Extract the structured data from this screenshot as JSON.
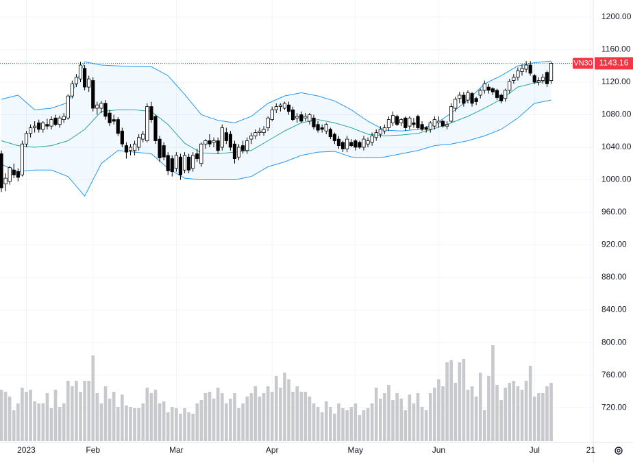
{
  "chart_data": {
    "type": "candlestick",
    "symbol": "VN30",
    "xlim": [
      -0.33,
      141.94
    ],
    "ylim": [
      678,
      1221
    ],
    "xticks": [
      {
        "value": 6,
        "label": "2023"
      },
      {
        "value": 22,
        "label": "Feb"
      },
      {
        "value": 42,
        "label": "Mar"
      },
      {
        "value": 65,
        "label": "Apr"
      },
      {
        "value": 85,
        "label": "May"
      },
      {
        "value": 105,
        "label": "Jun"
      },
      {
        "value": 128,
        "label": "Jul"
      },
      {
        "value": 141.5,
        "label": "21"
      }
    ],
    "yticks": [
      {
        "value": 720,
        "label": "720.00"
      },
      {
        "value": 760,
        "label": "760.00"
      },
      {
        "value": 800,
        "label": "800.00"
      },
      {
        "value": 840,
        "label": "840.00"
      },
      {
        "value": 880,
        "label": "880.00"
      },
      {
        "value": 920,
        "label": "920.00"
      },
      {
        "value": 960,
        "label": "960.00"
      },
      {
        "value": 1000,
        "label": "1000.00"
      },
      {
        "value": 1040,
        "label": "1040.00"
      },
      {
        "value": 1080,
        "label": "1080.00"
      },
      {
        "value": 1120,
        "label": "1120.00"
      },
      {
        "value": 1160,
        "label": "1160.00"
      },
      {
        "value": 1200,
        "label": "1200.00"
      }
    ],
    "grid": true,
    "up_color": "#ffffff",
    "down_color": "#000000",
    "last_color": "#f23645",
    "ohlc": [
      [
        1032,
        1036,
        985,
        990
      ],
      [
        995,
        1008,
        986,
        1002
      ],
      [
        998,
        1017,
        994,
        1015
      ],
      [
        1012,
        1020,
        1002,
        1006
      ],
      [
        1010,
        1014,
        998,
        1003
      ],
      [
        1006,
        1048,
        1004,
        1044
      ],
      [
        1044,
        1060,
        1040,
        1057
      ],
      [
        1057,
        1068,
        1052,
        1064
      ],
      [
        1064,
        1072,
        1058,
        1066
      ],
      [
        1070,
        1074,
        1058,
        1062
      ],
      [
        1062,
        1072,
        1058,
        1070
      ],
      [
        1068,
        1075,
        1062,
        1066
      ],
      [
        1066,
        1078,
        1062,
        1074
      ],
      [
        1076,
        1080,
        1066,
        1068
      ],
      [
        1068,
        1079,
        1064,
        1076
      ],
      [
        1074,
        1082,
        1070,
        1078
      ],
      [
        1076,
        1105,
        1074,
        1103
      ],
      [
        1103,
        1122,
        1100,
        1118
      ],
      [
        1118,
        1130,
        1114,
        1126
      ],
      [
        1124,
        1145,
        1120,
        1141
      ],
      [
        1137,
        1141,
        1110,
        1114
      ],
      [
        1114,
        1128,
        1108,
        1124
      ],
      [
        1122,
        1126,
        1084,
        1088
      ],
      [
        1088,
        1096,
        1080,
        1092
      ],
      [
        1088,
        1097,
        1082,
        1094
      ],
      [
        1094,
        1098,
        1074,
        1078
      ],
      [
        1082,
        1086,
        1066,
        1070
      ],
      [
        1074,
        1080,
        1068,
        1072
      ],
      [
        1074,
        1077,
        1054,
        1057
      ],
      [
        1060,
        1064,
        1040,
        1044
      ],
      [
        1042,
        1046,
        1026,
        1034
      ],
      [
        1036,
        1044,
        1030,
        1040
      ],
      [
        1036,
        1048,
        1030,
        1044
      ],
      [
        1040,
        1056,
        1036,
        1052
      ],
      [
        1050,
        1060,
        1046,
        1056
      ],
      [
        1048,
        1094,
        1046,
        1090
      ],
      [
        1090,
        1096,
        1070,
        1074
      ],
      [
        1078,
        1080,
        1044,
        1048
      ],
      [
        1050,
        1054,
        1022,
        1027
      ],
      [
        1042,
        1046,
        1024,
        1028
      ],
      [
        1030,
        1034,
        1006,
        1011
      ],
      [
        1026,
        1030,
        1004,
        1010
      ],
      [
        1014,
        1034,
        1010,
        1030
      ],
      [
        1028,
        1032,
        1000,
        1006
      ],
      [
        1012,
        1034,
        1008,
        1030
      ],
      [
        1028,
        1032,
        1008,
        1012
      ],
      [
        1014,
        1034,
        1010,
        1030
      ],
      [
        1032,
        1038,
        1022,
        1026
      ],
      [
        1020,
        1046,
        1016,
        1044
      ],
      [
        1044,
        1050,
        1038,
        1048
      ],
      [
        1048,
        1056,
        1040,
        1044
      ],
      [
        1046,
        1052,
        1040,
        1048
      ],
      [
        1048,
        1052,
        1032,
        1036
      ],
      [
        1040,
        1068,
        1036,
        1064
      ],
      [
        1058,
        1064,
        1044,
        1048
      ],
      [
        1056,
        1060,
        1036,
        1040
      ],
      [
        1044,
        1048,
        1020,
        1026
      ],
      [
        1028,
        1044,
        1024,
        1040
      ],
      [
        1042,
        1048,
        1032,
        1036
      ],
      [
        1036,
        1052,
        1032,
        1048
      ],
      [
        1050,
        1058,
        1044,
        1054
      ],
      [
        1054,
        1062,
        1050,
        1058
      ],
      [
        1058,
        1064,
        1054,
        1060
      ],
      [
        1058,
        1066,
        1054,
        1062
      ],
      [
        1064,
        1078,
        1060,
        1076
      ],
      [
        1074,
        1090,
        1072,
        1086
      ],
      [
        1086,
        1094,
        1082,
        1090
      ],
      [
        1090,
        1094,
        1084,
        1092
      ],
      [
        1088,
        1096,
        1086,
        1094
      ],
      [
        1092,
        1096,
        1080,
        1084
      ],
      [
        1086,
        1090,
        1072,
        1074
      ],
      [
        1076,
        1082,
        1070,
        1078
      ],
      [
        1080,
        1084,
        1070,
        1072
      ],
      [
        1076,
        1082,
        1072,
        1078
      ],
      [
        1072,
        1082,
        1068,
        1080
      ],
      [
        1076,
        1080,
        1062,
        1065
      ],
      [
        1068,
        1072,
        1058,
        1061
      ],
      [
        1064,
        1068,
        1058,
        1062
      ],
      [
        1060,
        1070,
        1056,
        1068
      ],
      [
        1062,
        1064,
        1050,
        1053
      ],
      [
        1056,
        1058,
        1044,
        1048
      ],
      [
        1050,
        1054,
        1038,
        1042
      ],
      [
        1046,
        1048,
        1034,
        1038
      ],
      [
        1038,
        1054,
        1034,
        1050
      ],
      [
        1046,
        1050,
        1040,
        1042
      ],
      [
        1048,
        1050,
        1036,
        1040
      ],
      [
        1046,
        1048,
        1038,
        1040
      ],
      [
        1040,
        1054,
        1036,
        1050
      ],
      [
        1044,
        1052,
        1040,
        1048
      ],
      [
        1046,
        1058,
        1042,
        1054
      ],
      [
        1052,
        1062,
        1048,
        1058
      ],
      [
        1056,
        1066,
        1052,
        1062
      ],
      [
        1060,
        1068,
        1056,
        1064
      ],
      [
        1064,
        1078,
        1060,
        1074
      ],
      [
        1070,
        1084,
        1066,
        1079
      ],
      [
        1078,
        1080,
        1066,
        1068
      ],
      [
        1070,
        1076,
        1066,
        1074
      ],
      [
        1076,
        1078,
        1060,
        1064
      ],
      [
        1066,
        1078,
        1062,
        1076
      ],
      [
        1070,
        1076,
        1064,
        1068
      ],
      [
        1078,
        1080,
        1062,
        1064
      ],
      [
        1068,
        1072,
        1060,
        1062
      ],
      [
        1064,
        1066,
        1058,
        1062
      ],
      [
        1062,
        1072,
        1058,
        1070
      ],
      [
        1066,
        1078,
        1062,
        1074
      ],
      [
        1070,
        1078,
        1064,
        1072
      ],
      [
        1072,
        1074,
        1064,
        1066
      ],
      [
        1066,
        1072,
        1062,
        1068
      ],
      [
        1072,
        1094,
        1070,
        1090
      ],
      [
        1088,
        1102,
        1084,
        1099
      ],
      [
        1100,
        1108,
        1094,
        1104
      ],
      [
        1104,
        1108,
        1090,
        1094
      ],
      [
        1098,
        1110,
        1094,
        1107
      ],
      [
        1106,
        1108,
        1090,
        1094
      ],
      [
        1100,
        1102,
        1092,
        1096
      ],
      [
        1104,
        1112,
        1100,
        1110
      ],
      [
        1110,
        1122,
        1106,
        1118
      ],
      [
        1114,
        1118,
        1106,
        1110
      ],
      [
        1112,
        1114,
        1104,
        1108
      ],
      [
        1110,
        1112,
        1098,
        1101
      ],
      [
        1104,
        1106,
        1094,
        1097
      ],
      [
        1100,
        1112,
        1096,
        1110
      ],
      [
        1110,
        1124,
        1106,
        1121
      ],
      [
        1122,
        1130,
        1118,
        1126
      ],
      [
        1126,
        1138,
        1122,
        1134
      ],
      [
        1133,
        1142,
        1128,
        1137
      ],
      [
        1136,
        1146,
        1132,
        1141
      ],
      [
        1141,
        1146,
        1128,
        1131
      ],
      [
        1128,
        1130,
        1118,
        1120
      ],
      [
        1120,
        1126,
        1116,
        1122
      ],
      [
        1122,
        1130,
        1118,
        1126
      ],
      [
        1132,
        1134,
        1114,
        1118
      ],
      [
        1122,
        1145,
        1118,
        1143.16
      ]
    ],
    "volume_lim": [
      0,
      150
    ],
    "volume_color": "#c8c9cd",
    "volume": [
      75,
      72,
      65,
      45,
      55,
      78,
      72,
      75,
      58,
      55,
      55,
      70,
      48,
      75,
      50,
      55,
      88,
      80,
      88,
      72,
      88,
      88,
      125,
      70,
      55,
      80,
      62,
      72,
      50,
      68,
      52,
      50,
      48,
      48,
      55,
      78,
      70,
      75,
      55,
      58,
      42,
      50,
      48,
      40,
      48,
      42,
      40,
      55,
      60,
      70,
      72,
      62,
      78,
      70,
      55,
      62,
      70,
      48,
      55,
      65,
      70,
      80,
      65,
      70,
      80,
      72,
      95,
      78,
      100,
      90,
      72,
      80,
      72,
      72,
      65,
      55,
      50,
      42,
      58,
      50,
      40,
      55,
      48,
      45,
      50,
      55,
      38,
      45,
      48,
      55,
      78,
      62,
      70,
      82,
      60,
      70,
      62,
      45,
      68,
      55,
      70,
      50,
      45,
      70,
      78,
      90,
      80,
      115,
      118,
      85,
      115,
      120,
      75,
      80,
      65,
      100,
      45,
      95,
      140,
      82,
      60,
      78,
      85,
      88,
      80,
      75,
      88,
      110,
      65,
      70,
      70,
      80,
      85
    ],
    "bands": {
      "color": "#2196f3",
      "middle_color": "#26a69a",
      "fill": "#2196f3",
      "x": [
        0,
        4,
        8,
        12,
        16,
        20,
        24,
        28,
        32,
        36,
        40,
        44,
        48,
        52,
        56,
        60,
        64,
        68,
        72,
        76,
        80,
        84,
        88,
        92,
        96,
        100,
        104,
        108,
        112,
        116,
        120,
        124,
        128,
        132
      ],
      "upper": [
        1099,
        1104,
        1086,
        1088,
        1095,
        1145,
        1141,
        1140,
        1139,
        1139,
        1128,
        1105,
        1080,
        1073,
        1070,
        1078,
        1094,
        1103,
        1107,
        1103,
        1097,
        1086,
        1072,
        1061,
        1060,
        1062,
        1068,
        1082,
        1098,
        1118,
        1128,
        1140,
        1144,
        1146
      ],
      "middle": [
        1048,
        1042,
        1040,
        1042,
        1048,
        1062,
        1084,
        1086,
        1086,
        1084,
        1068,
        1045,
        1033,
        1032,
        1034,
        1036,
        1048,
        1060,
        1070,
        1074,
        1070,
        1064,
        1056,
        1054,
        1055,
        1057,
        1063,
        1070,
        1078,
        1088,
        1099,
        1114,
        1119,
        1122
      ],
      "lower": [
        1019,
        1010,
        1012,
        1012,
        1004,
        980,
        1020,
        1036,
        1034,
        1032,
        1014,
        1002,
        1000,
        1000,
        1000,
        1004,
        1016,
        1022,
        1030,
        1034,
        1035,
        1028,
        1027,
        1028,
        1032,
        1036,
        1042,
        1044,
        1048,
        1054,
        1062,
        1076,
        1094,
        1098
      ]
    }
  }
}
